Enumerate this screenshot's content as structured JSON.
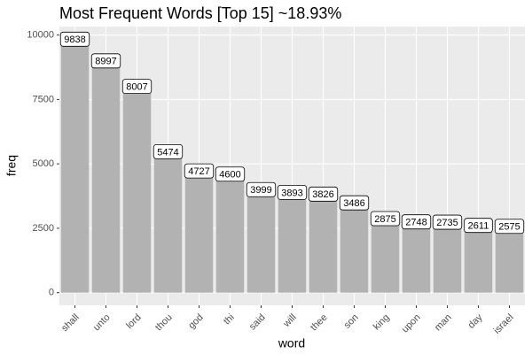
{
  "chart_data": {
    "type": "bar",
    "title": "Most Frequent Words [Top 15] ~18.93%",
    "x_label": "word",
    "y_label": "freq",
    "categories": [
      "shall",
      "unto",
      "lord",
      "thou",
      "god",
      "thi",
      "said",
      "will",
      "thee",
      "son",
      "king",
      "upon",
      "man",
      "day",
      "israel"
    ],
    "values": [
      9838,
      8997,
      8007,
      5474,
      4727,
      4600,
      3999,
      3893,
      3826,
      3486,
      2875,
      2748,
      2735,
      2611,
      2575
    ],
    "color": "#b2b2b2",
    "ylim": [
      -492,
      10330
    ],
    "yticks": [
      0,
      2500,
      5000,
      7500,
      10000
    ],
    "grid": true
  }
}
